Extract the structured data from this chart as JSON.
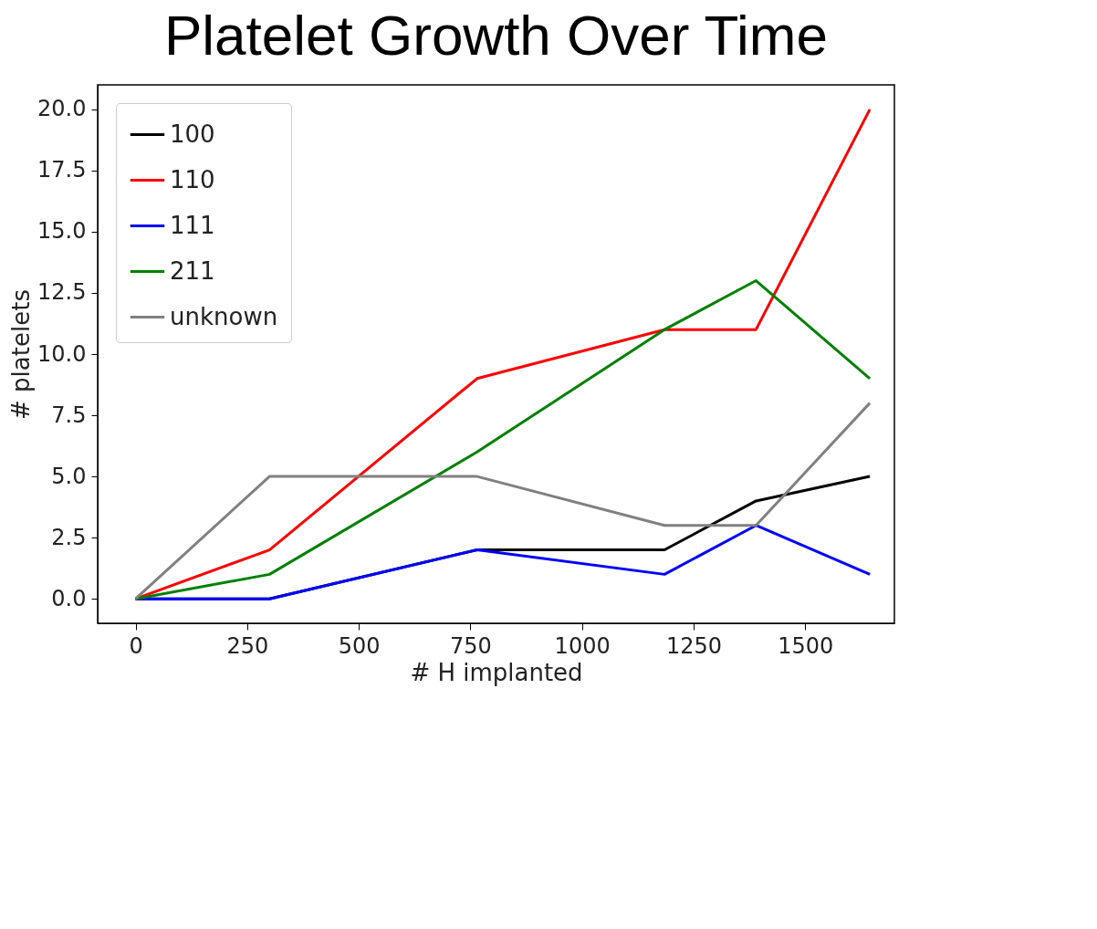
{
  "chart_data": {
    "type": "line",
    "title": "Platelet Growth Over Time",
    "xlabel": "# H implanted",
    "ylabel": "# platelets",
    "x": [
      0,
      300,
      765,
      1185,
      1390,
      1645
    ],
    "series": [
      {
        "name": "100",
        "color": "#000000",
        "values": [
          0,
          0,
          2,
          2,
          4,
          5
        ]
      },
      {
        "name": "110",
        "color": "#ff0000",
        "values": [
          0,
          2,
          9,
          11,
          11,
          20
        ]
      },
      {
        "name": "111",
        "color": "#0000ff",
        "values": [
          0,
          0,
          2,
          1,
          3,
          1
        ]
      },
      {
        "name": "211",
        "color": "#008000",
        "values": [
          0,
          1,
          6,
          11,
          13,
          9
        ]
      },
      {
        "name": "unknown",
        "color": "#808080",
        "values": [
          0,
          5,
          5,
          3,
          3,
          8
        ]
      }
    ],
    "xlim": [
      -85,
      1700
    ],
    "xticks": [
      0,
      250,
      500,
      750,
      1000,
      1250,
      1500
    ],
    "ylim": [
      -1,
      21
    ],
    "yticks": [
      {
        "value": 0,
        "label": "0.0"
      },
      {
        "value": 2.5,
        "label": "2.5"
      },
      {
        "value": 5,
        "label": "5.0"
      },
      {
        "value": 7.5,
        "label": "7.5"
      },
      {
        "value": 10,
        "label": "10.0"
      },
      {
        "value": 12.5,
        "label": "12.5"
      },
      {
        "value": 15,
        "label": "15.0"
      },
      {
        "value": 17.5,
        "label": "17.5"
      },
      {
        "value": 20,
        "label": "20.0"
      }
    ],
    "grid": false,
    "legend": "top left",
    "marker": "none",
    "line_style": "solid"
  }
}
